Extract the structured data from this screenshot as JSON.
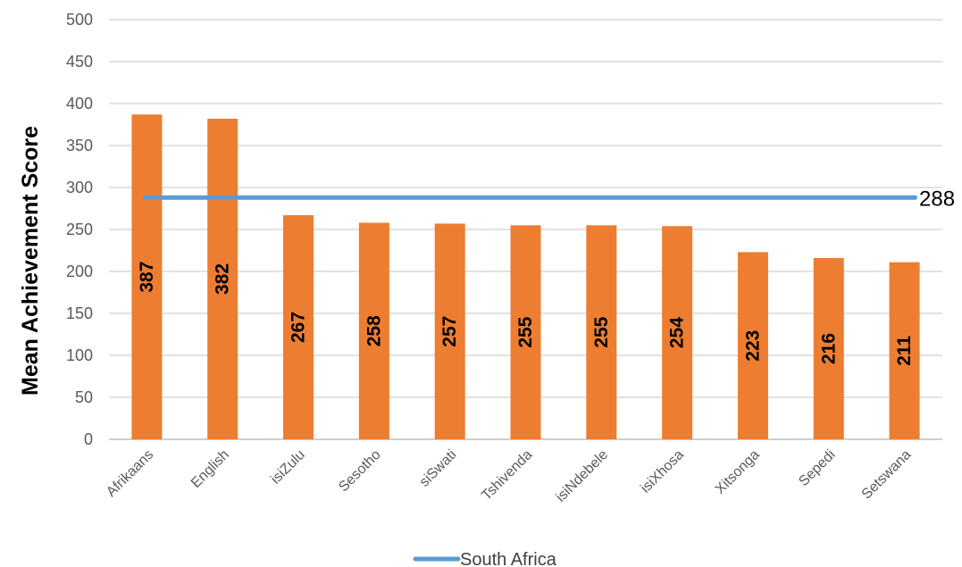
{
  "chart_data": {
    "type": "bar",
    "ylabel": "Mean Achievement Score",
    "ylim": [
      0,
      500
    ],
    "yticks": [
      0,
      50,
      100,
      150,
      200,
      250,
      300,
      350,
      400,
      450,
      500
    ],
    "grid": true,
    "categories": [
      "Afrikaans",
      "English",
      "isiZulu",
      "Sesotho",
      "siSwati",
      "Tshivenda",
      "isiNdebele",
      "isiXhosa",
      "Xitsonga",
      "Sepedi",
      "Setswana"
    ],
    "values": [
      387,
      382,
      267,
      258,
      257,
      255,
      255,
      254,
      223,
      216,
      211
    ],
    "reference_line": {
      "name": "South Africa",
      "value": 288,
      "label": "288"
    },
    "legend_position": "bottom",
    "colors": {
      "bar": "#ED7D31",
      "line": "#5B9BD5",
      "grid": "#D9D9D9"
    }
  }
}
